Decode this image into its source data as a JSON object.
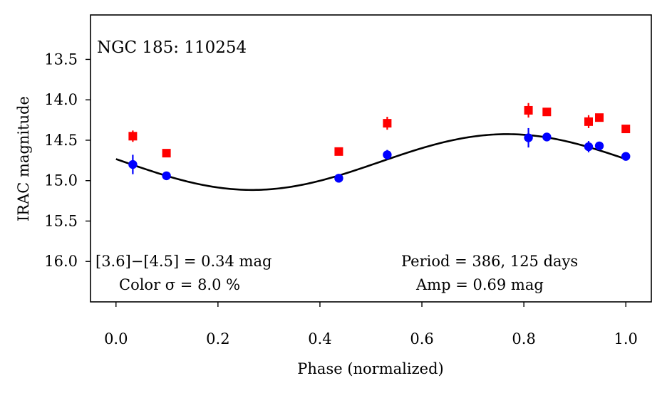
{
  "chart_data": {
    "type": "scatter",
    "title": "NGC 185:  110254",
    "xlabel": "Phase (normalized)",
    "ylabel": "IRAC magnitude",
    "xlim": [
      -0.05,
      1.05
    ],
    "ylim": [
      16.5,
      12.95
    ],
    "y_inverted": true,
    "xticks": [
      0.0,
      0.2,
      0.4,
      0.6,
      0.8,
      1.0
    ],
    "xtick_labels": [
      "0.0",
      "0.2",
      "0.4",
      "0.6",
      "0.8",
      "1.0"
    ],
    "yticks": [
      13.5,
      14.0,
      14.5,
      15.0,
      15.5,
      16.0
    ],
    "ytick_labels": [
      "13.5",
      "14.0",
      "14.5",
      "15.0",
      "15.5",
      "16.0"
    ],
    "grid": false,
    "series": [
      {
        "name": "[4.5]",
        "color": "#ff0000",
        "marker": "square",
        "points": [
          {
            "x": 0.033,
            "y": 14.45,
            "err": 0.07
          },
          {
            "x": 0.099,
            "y": 14.66,
            "err": 0.04
          },
          {
            "x": 0.437,
            "y": 14.64,
            "err": 0.02
          },
          {
            "x": 0.532,
            "y": 14.29,
            "err": 0.08
          },
          {
            "x": 0.809,
            "y": 14.13,
            "err": 0.09
          },
          {
            "x": 0.845,
            "y": 14.15,
            "err": 0.03
          },
          {
            "x": 0.927,
            "y": 14.27,
            "err": 0.08
          },
          {
            "x": 0.948,
            "y": 14.22,
            "err": 0.02
          },
          {
            "x": 1.0,
            "y": 14.36,
            "err": 0.02
          }
        ]
      },
      {
        "name": "[3.6]",
        "color": "#0000ff",
        "marker": "circle",
        "points": [
          {
            "x": 0.033,
            "y": 14.8,
            "err": 0.12
          },
          {
            "x": 0.099,
            "y": 14.94,
            "err": 0.03
          },
          {
            "x": 0.437,
            "y": 14.97,
            "err": 0.02
          },
          {
            "x": 0.532,
            "y": 14.68,
            "err": 0.06
          },
          {
            "x": 0.809,
            "y": 14.47,
            "err": 0.12
          },
          {
            "x": 0.845,
            "y": 14.46,
            "err": 0.03
          },
          {
            "x": 0.927,
            "y": 14.58,
            "err": 0.07
          },
          {
            "x": 0.948,
            "y": 14.57,
            "err": 0.02
          },
          {
            "x": 1.0,
            "y": 14.7,
            "err": 0.02
          }
        ]
      }
    ],
    "fit_curve": {
      "name": "sinusoidal fit",
      "color": "#000000",
      "mean": 14.77,
      "amplitude": 0.345,
      "max_phase": 0.767,
      "period": 1.0
    },
    "annotations": {
      "color_index": "[3.6]−[4.5] = 0.34 mag",
      "color_sigma": "Color σ = 8.0 %",
      "period": "Period = 386, 125 days",
      "amp": "Amp = 0.69 mag"
    }
  }
}
